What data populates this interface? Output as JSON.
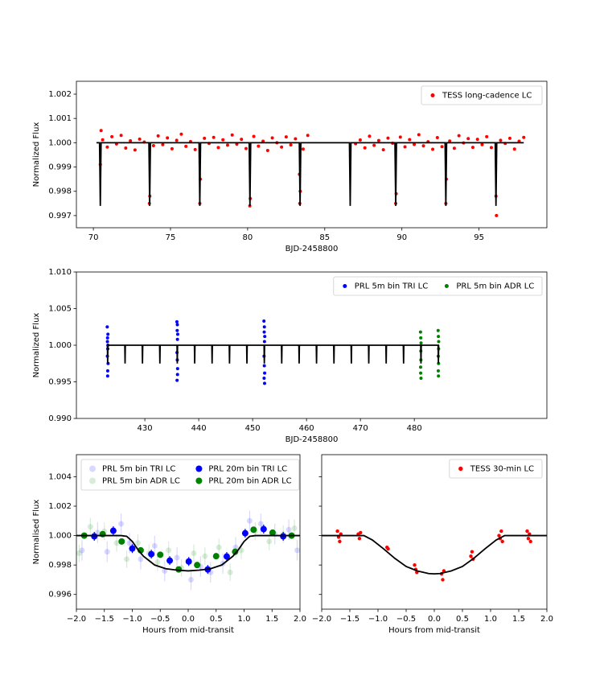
{
  "chart_data": [
    {
      "type": "scatter",
      "xlabel": "BJD-2458800",
      "ylabel": "Normalized Flux",
      "xlim": [
        68.9,
        99.4
      ],
      "ylim": [
        0.9965,
        1.00253
      ],
      "xticks": [
        70,
        75,
        80,
        85,
        90,
        95
      ],
      "yticks": [
        1.002,
        1.001,
        {
          "value": 1,
          "label": "1.000"
        },
        0.999,
        0.998,
        0.997
      ],
      "legend": "upper right",
      "legend_ncol": 1,
      "series": [
        {
          "name": "TESS long-cadence LC",
          "color": "#ff0000",
          "markersize": 2,
          "x": [
            70.6,
            70.9,
            71.2,
            71.5,
            71.8,
            72.1,
            72.4,
            72.7,
            73.0,
            73.3,
            73.9,
            74.2,
            74.5,
            74.8,
            75.1,
            75.4,
            75.7,
            76.0,
            76.3,
            76.6,
            77.2,
            77.5,
            77.8,
            78.1,
            78.4,
            78.7,
            79.0,
            79.3,
            79.6,
            79.9,
            80.4,
            80.7,
            81.0,
            81.3,
            81.6,
            81.9,
            82.2,
            82.5,
            82.8,
            83.1,
            83.6,
            83.9,
            87.0,
            87.3,
            87.6,
            87.9,
            88.2,
            88.5,
            88.8,
            89.1,
            89.4,
            89.9,
            90.2,
            90.5,
            90.8,
            91.1,
            91.4,
            91.7,
            92.0,
            92.3,
            92.6,
            93.1,
            93.4,
            93.7,
            94.0,
            94.3,
            94.6,
            94.9,
            95.2,
            95.5,
            95.8,
            96.4,
            96.7,
            97.0,
            97.3,
            97.6,
            97.9,
            70.45,
            70.5,
            73.63,
            73.66,
            76.9,
            76.93,
            80.14,
            80.17,
            83.38,
            83.41,
            83.36,
            89.6,
            89.63,
            92.85,
            92.88,
            96.1,
            96.13
          ],
          "values": [
            1.00012,
            0.99982,
            1.00025,
            0.99995,
            1.0003,
            0.99978,
            1.00008,
            0.9997,
            1.00015,
            1.00003,
            0.99988,
            1.00028,
            0.99992,
            1.0002,
            0.99975,
            1.0001,
            1.00035,
            0.99985,
            1.00005,
            0.99972,
            1.00018,
            0.99997,
            1.00022,
            0.9998,
            1.00012,
            0.9999,
            1.00032,
            0.99994,
            1.00014,
            0.99976,
            1.00026,
            0.99986,
            1.00006,
            0.99968,
            1.0002,
            1,
            0.99982,
            1.00024,
            0.99991,
            1.00016,
            0.99974,
            1.0003,
            0.99996,
            1.00011,
            0.99979,
            1.00027,
            0.99989,
            1.00009,
            0.99971,
            1.00019,
            0.99998,
            1.00023,
            0.99983,
            1.00013,
            0.99993,
            1.00033,
            0.99987,
            1.00004,
            0.99973,
            1.00021,
            0.99984,
            1.00007,
            0.99977,
            1.00029,
            0.99999,
            1.00017,
            0.99981,
            1.00014,
            0.99992,
            1.00025,
            0.9998,
            1.0001,
            0.99997,
            1.00018,
            0.99974,
            1.00006,
            1.00022,
            0.9991,
            1.0005,
            0.9975,
            0.9978,
            0.9975,
            0.9985,
            0.9974,
            0.9977,
            0.9975,
            0.998,
            0.9987,
            0.9975,
            0.9979,
            0.9975,
            0.9985,
            0.9978,
            0.997
          ]
        },
        {
          "type": "line",
          "color": "#000000",
          "x": [
            70.2,
            70.4,
            70.45,
            70.5,
            73.6,
            73.65,
            73.7,
            76.85,
            76.9,
            76.95,
            80.1,
            80.15,
            80.2,
            83.35,
            83.4,
            83.45,
            86.6,
            86.65,
            86.7,
            89.55,
            89.6,
            89.65,
            92.8,
            92.85,
            92.9,
            96.05,
            96.1,
            96.15,
            97.9
          ],
          "values": [
            1,
            1,
            0.9974,
            1,
            1,
            0.9974,
            1,
            1,
            0.9974,
            1,
            1,
            0.9974,
            1,
            1,
            0.9974,
            1,
            1,
            0.9974,
            1,
            1,
            0.9974,
            1,
            1,
            0.9974,
            1,
            1,
            0.9974,
            1,
            1
          ]
        }
      ]
    },
    {
      "type": "scatter",
      "xlabel": "BJD-2458800",
      "ylabel": "Normalized Flux",
      "xlim": [
        417.3,
        504.6
      ],
      "ylim": [
        0.99,
        1.01
      ],
      "xticks": [
        430,
        440,
        450,
        460,
        470,
        480
      ],
      "yticks": [
        {
          "value": 0.99,
          "label": "0.990"
        },
        0.995,
        {
          "value": 1,
          "label": "1.000"
        },
        1.005,
        {
          "value": 1.01,
          "label": "1.010"
        }
      ],
      "legend": "upper right",
      "legend_ncol": 2,
      "series": [
        {
          "name": "PRL 5m bin TRI LC",
          "color": "#0000ff",
          "markersize": 2,
          "x": [
            423.02,
            423.05,
            423.08,
            423.1,
            423.12,
            423.15,
            423.18,
            423.06,
            423.11,
            423.14,
            435.95,
            435.98,
            436.0,
            436.02,
            436.05,
            436.08,
            436.1,
            435.97,
            436.03,
            436.06,
            452.1,
            452.13,
            452.15,
            452.17,
            452.2,
            452.23,
            452.25,
            452.12,
            452.18,
            452.22
          ],
          "values": [
            1.0025,
            0.9985,
            1.001,
            0.9958,
            0.9995,
            1.0015,
            0.9975,
            1.0005,
            0.9965,
            1.0,
            1.0032,
            0.9952,
            1.002,
            0.998,
            1.0008,
            0.9968,
            1.0015,
            0.999,
            1.0028,
            0.996,
            1.0033,
            0.9955,
            1.0018,
            0.9972,
            1.0005,
            0.9962,
            1.0012,
            0.9985,
            1.0025,
            0.9948
          ]
        },
        {
          "name": "PRL 5m bin ADR LC",
          "color": "#008000",
          "markersize": 2,
          "x": [
            481.15,
            481.18,
            481.2,
            481.22,
            481.25,
            481.17,
            481.21,
            481.24,
            484.42,
            484.45,
            484.47,
            484.5,
            484.52,
            484.44,
            484.48,
            484.51
          ],
          "values": [
            1.0018,
            0.9962,
            1.001,
            0.998,
            1.0003,
            0.997,
            0.9992,
            0.9955,
            1.002,
            0.9965,
            1.0012,
            0.9975,
            1.0005,
            0.9985,
            0.9958,
            0.9995
          ]
        },
        {
          "type": "line",
          "color": "#000000",
          "x": [
            423.0,
            423.05,
            423.1,
            423.15,
            426.28,
            426.33,
            426.38,
            429.51,
            429.56,
            429.61,
            432.74,
            432.79,
            432.84,
            435.97,
            436.02,
            436.07,
            439.2,
            439.25,
            439.3,
            442.43,
            442.48,
            442.53,
            445.66,
            445.71,
            445.76,
            448.89,
            448.94,
            448.99,
            452.12,
            452.17,
            452.22,
            455.35,
            455.4,
            455.45,
            458.58,
            458.63,
            458.68,
            461.81,
            461.86,
            461.91,
            465.04,
            465.09,
            465.14,
            468.27,
            468.32,
            468.37,
            471.5,
            471.55,
            471.6,
            474.73,
            474.78,
            474.83,
            477.96,
            478.01,
            478.06,
            481.19,
            481.24,
            481.29,
            484.42,
            484.47,
            484.52,
            484.6
          ],
          "values": [
            1,
            1,
            0.9975,
            1,
            1,
            0.9975,
            1,
            1,
            0.9975,
            1,
            1,
            0.9975,
            1,
            1,
            0.9975,
            1,
            1,
            0.9975,
            1,
            1,
            0.9975,
            1,
            1,
            0.9975,
            1,
            1,
            0.9975,
            1,
            1,
            0.9975,
            1,
            1,
            0.9975,
            1,
            1,
            0.9975,
            1,
            1,
            0.9975,
            1,
            1,
            0.9975,
            1,
            1,
            0.9975,
            1,
            1,
            0.9975,
            1,
            1,
            0.9975,
            1,
            1,
            0.9975,
            1,
            1,
            0.9975,
            1,
            1,
            0.9975,
            1,
            1
          ]
        }
      ]
    },
    {
      "type": "scatter",
      "xlabel": "Hours from mid-transit",
      "ylabel": "Normalised Flux",
      "xlim": [
        -2,
        2
      ],
      "ylim": [
        0.995,
        1.0055
      ],
      "xticks": [
        {
          "value": -2,
          "label": "−2.0"
        },
        {
          "value": -1.5,
          "label": "−1.5"
        },
        {
          "value": -1,
          "label": "−1.0"
        },
        {
          "value": -0.5,
          "label": "−0.5"
        },
        {
          "value": 0,
          "label": "0.0"
        },
        0.5,
        {
          "value": 1,
          "label": "1.0"
        },
        1.5,
        {
          "value": 2,
          "label": "2.0"
        }
      ],
      "yticks": [
        0.996,
        0.998,
        {
          "value": 1,
          "label": "1.000"
        },
        1.002,
        1.004
      ],
      "legend": "upper left",
      "legend_ncol": 2,
      "series": [
        {
          "name": "PRL 5m bin TRI LC",
          "color": "#0000ff",
          "alpha": 0.15,
          "markersize": 3.5,
          "x": [
            -1.9,
            -1.62,
            -1.45,
            -1.2,
            -1.05,
            -0.85,
            -0.6,
            -0.42,
            -0.2,
            0.05,
            0.22,
            0.4,
            0.62,
            0.85,
            1.1,
            1.3,
            1.55,
            1.8,
            1.95
          ],
          "values": [
            0.999,
            1.0002,
            0.9989,
            1.0008,
            0.9995,
            0.9984,
            0.9993,
            0.9976,
            0.9985,
            0.997,
            0.9979,
            0.9975,
            0.9981,
            0.9992,
            1.001,
            1.0008,
            1.0001,
            1.0004,
            0.999
          ],
          "yerr": [
            0.0007,
            0.0007,
            0.0007,
            0.0007,
            0.0007,
            0.0007,
            0.0007,
            0.0007,
            0.0007,
            0.0007,
            0.0007,
            0.0007,
            0.0007,
            0.0007,
            0.0007,
            0.0007,
            0.0007,
            0.0007,
            0.0007
          ]
        },
        {
          "name": "PRL 5m bin ADR LC",
          "color": "#008000",
          "alpha": 0.15,
          "markersize": 3.5,
          "x": [
            -1.95,
            -1.75,
            -1.5,
            -1.28,
            -1.1,
            -0.9,
            -0.7,
            -0.55,
            -0.35,
            -0.12,
            0.1,
            0.3,
            0.55,
            0.75,
            0.95,
            1.2,
            1.45,
            1.7,
            1.9
          ],
          "values": [
            0.9988,
            1.0006,
            1.0003,
            0.9995,
            0.9984,
            0.9995,
            0.9988,
            0.9982,
            0.999,
            0.9978,
            0.9988,
            0.9986,
            0.9992,
            0.9975,
            0.999,
            1.0003,
            0.9996,
            1.0001,
            1.0005
          ],
          "yerr": [
            0.0006,
            0.0006,
            0.0006,
            0.0006,
            0.0006,
            0.0006,
            0.0006,
            0.0006,
            0.0006,
            0.0006,
            0.0006,
            0.0006,
            0.0006,
            0.0006,
            0.0006,
            0.0006,
            0.0006,
            0.0006,
            0.0006
          ]
        },
        {
          "name": "PRL 20m bin TRI LC",
          "color": "#0000ff",
          "markersize": 4,
          "x": [
            -1.68,
            -1.34,
            -1.0,
            -0.66,
            -0.33,
            0.01,
            0.35,
            0.69,
            1.02,
            1.35,
            1.7
          ],
          "values": [
            0.99995,
            1.00033,
            0.99912,
            0.99874,
            0.9983,
            0.99824,
            0.9977,
            0.99858,
            1.00016,
            1.00044,
            0.99995
          ],
          "yerr": [
            0.0003,
            0.0003,
            0.0003,
            0.0003,
            0.0003,
            0.0003,
            0.0003,
            0.0003,
            0.0003,
            0.0003,
            0.0003
          ]
        },
        {
          "name": "PRL 20m bin ADR LC",
          "color": "#008000",
          "markersize": 4,
          "x": [
            -1.86,
            -1.53,
            -1.19,
            -0.85,
            -0.5,
            -0.17,
            0.16,
            0.5,
            0.84,
            1.17,
            1.51,
            1.85
          ],
          "values": [
            1.0,
            1.0001,
            0.9996,
            0.999,
            0.9987,
            0.9977,
            0.998,
            0.9986,
            0.9989,
            1.0004,
            1.0002,
            1.0
          ],
          "yerr": [
            0.0002,
            0.0002,
            0.0002,
            0.0002,
            0.0002,
            0.0002,
            0.0002,
            0.0002,
            0.0002,
            0.0002,
            0.0002,
            0.0002
          ]
        },
        {
          "type": "line",
          "color": "#000000",
          "x": [
            -2,
            -1.2,
            -1.1,
            -1.0,
            -0.9,
            -0.8,
            -0.6,
            -0.4,
            -0.2,
            0,
            0.2,
            0.4,
            0.6,
            0.8,
            0.9,
            1.0,
            1.1,
            1.2,
            2
          ],
          "values": [
            1,
            1,
            0.99995,
            0.9996,
            0.99905,
            0.9986,
            0.998,
            0.99775,
            0.99765,
            0.9976,
            0.99765,
            0.99775,
            0.998,
            0.9986,
            0.99905,
            0.9996,
            0.99995,
            1,
            1
          ]
        }
      ]
    },
    {
      "type": "scatter",
      "xlabel": "Hours from mid-transit",
      "xlim": [
        -2,
        2
      ],
      "ylim": [
        0.995,
        1.0055
      ],
      "xticks": [
        {
          "value": -2,
          "label": "−2.0"
        },
        {
          "value": -1.5,
          "label": "−1.5"
        },
        {
          "value": -1,
          "label": "−1.0"
        },
        {
          "value": -0.5,
          "label": "−0.5"
        },
        {
          "value": 0,
          "label": "0.0"
        },
        0.5,
        {
          "value": 1,
          "label": "1.0"
        },
        1.5,
        {
          "value": 2,
          "label": "2.0"
        }
      ],
      "legend": "upper right",
      "legend_ncol": 1,
      "series": [
        {
          "name": "TESS 30-min LC",
          "color": "#ff0000",
          "markersize": 2.2,
          "x": [
            -1.72,
            -1.7,
            -1.68,
            -1.66,
            -1.35,
            -1.33,
            -1.31,
            -0.84,
            -0.82,
            -0.35,
            -0.33,
            -0.31,
            0.13,
            0.15,
            0.17,
            0.65,
            0.67,
            0.69,
            1.15,
            1.17,
            1.19,
            1.21,
            1.65,
            1.67,
            1.69,
            1.71
          ],
          "values": [
            1.0003,
            0.9999,
            0.9996,
            1.0001,
            1.0001,
            0.9998,
            1.0002,
            0.9992,
            0.9991,
            0.998,
            0.9977,
            0.9975,
            0.9974,
            0.997,
            0.9976,
            0.9986,
            0.9989,
            0.9984,
            1.0,
            0.9998,
            1.0003,
            0.9996,
            1.0003,
            0.9998,
            1.0001,
            0.9996
          ]
        },
        {
          "type": "line",
          "color": "#000000",
          "x": [
            -2,
            -1.25,
            -1.1,
            -0.9,
            -0.7,
            -0.5,
            -0.3,
            -0.1,
            0,
            0.1,
            0.3,
            0.5,
            0.7,
            0.9,
            1.1,
            1.25,
            2
          ],
          "values": [
            1,
            1,
            0.9997,
            0.9991,
            0.99845,
            0.9979,
            0.9976,
            0.99742,
            0.9974,
            0.99742,
            0.9976,
            0.9979,
            0.99845,
            0.9991,
            0.9997,
            1,
            1
          ]
        }
      ]
    }
  ]
}
